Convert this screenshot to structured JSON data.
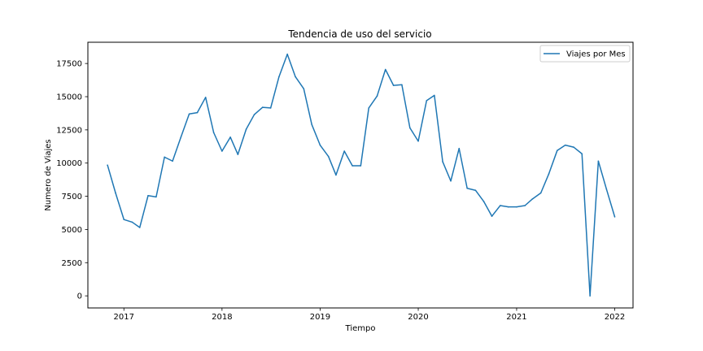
{
  "chart_data": {
    "type": "line",
    "title": "Tendencia de uso del servicio",
    "xlabel": "Tiempo",
    "ylabel": "Numero de Viajes",
    "x_ticks": [
      {
        "date": "2017-01-01",
        "label": "2017"
      },
      {
        "date": "2018-01-01",
        "label": "2018"
      },
      {
        "date": "2019-01-01",
        "label": "2019"
      },
      {
        "date": "2020-01-01",
        "label": "2020"
      },
      {
        "date": "2021-01-01",
        "label": "2021"
      },
      {
        "date": "2022-01-01",
        "label": "2022"
      }
    ],
    "y_ticks": [
      0,
      2500,
      5000,
      7500,
      10000,
      12500,
      15000,
      17500
    ],
    "y_tick_labels": [
      "0",
      "2500",
      "5000",
      "7500",
      "10000",
      "12500",
      "15000",
      "17500"
    ],
    "xlim": [
      "2016-08-20",
      "2022-03-10"
    ],
    "ylim": [
      -910,
      19100
    ],
    "grid": false,
    "legend_position": "top-right",
    "series": [
      {
        "name": "Viajes por Mes",
        "color": "#1f77b4",
        "x": [
          "2016-11-01",
          "2016-12-01",
          "2017-01-01",
          "2017-02-01",
          "2017-03-01",
          "2017-04-01",
          "2017-05-01",
          "2017-06-01",
          "2017-07-01",
          "2017-08-01",
          "2017-09-01",
          "2017-10-01",
          "2017-11-01",
          "2017-12-01",
          "2018-01-01",
          "2018-02-01",
          "2018-03-01",
          "2018-04-01",
          "2018-05-01",
          "2018-06-01",
          "2018-07-01",
          "2018-08-01",
          "2018-09-01",
          "2018-10-01",
          "2018-11-01",
          "2018-12-01",
          "2019-01-01",
          "2019-02-01",
          "2019-03-01",
          "2019-04-01",
          "2019-05-01",
          "2019-06-01",
          "2019-07-01",
          "2019-08-01",
          "2019-09-01",
          "2019-10-01",
          "2019-11-01",
          "2019-12-01",
          "2020-01-01",
          "2020-02-01",
          "2020-03-01",
          "2020-04-01",
          "2020-05-01",
          "2020-06-01",
          "2020-07-01",
          "2020-08-01",
          "2020-09-01",
          "2020-10-01",
          "2020-11-01",
          "2020-12-01",
          "2021-01-01",
          "2021-02-01",
          "2021-03-01",
          "2021-04-01",
          "2021-05-01",
          "2021-06-01",
          "2021-07-01",
          "2021-08-01",
          "2021-09-01",
          "2021-10-01",
          "2021-11-01",
          "2021-12-01",
          "2022-01-01"
        ],
        "values": [
          9850,
          7750,
          5750,
          5550,
          5150,
          7550,
          7450,
          10450,
          10150,
          11950,
          13700,
          13800,
          14950,
          12300,
          10900,
          11950,
          10650,
          12550,
          13650,
          14200,
          14150,
          16500,
          18200,
          16500,
          15600,
          12900,
          11350,
          10500,
          9100,
          10900,
          9800,
          9800,
          14150,
          15050,
          17050,
          15850,
          15900,
          12650,
          11650,
          14700,
          15100,
          10100,
          8650,
          11100,
          8100,
          7950,
          7100,
          6000,
          6800,
          6700,
          6700,
          6800,
          7300,
          7750,
          9200,
          10950,
          11350,
          11200,
          10700,
          0,
          10150,
          8050,
          5950
        ]
      }
    ]
  }
}
